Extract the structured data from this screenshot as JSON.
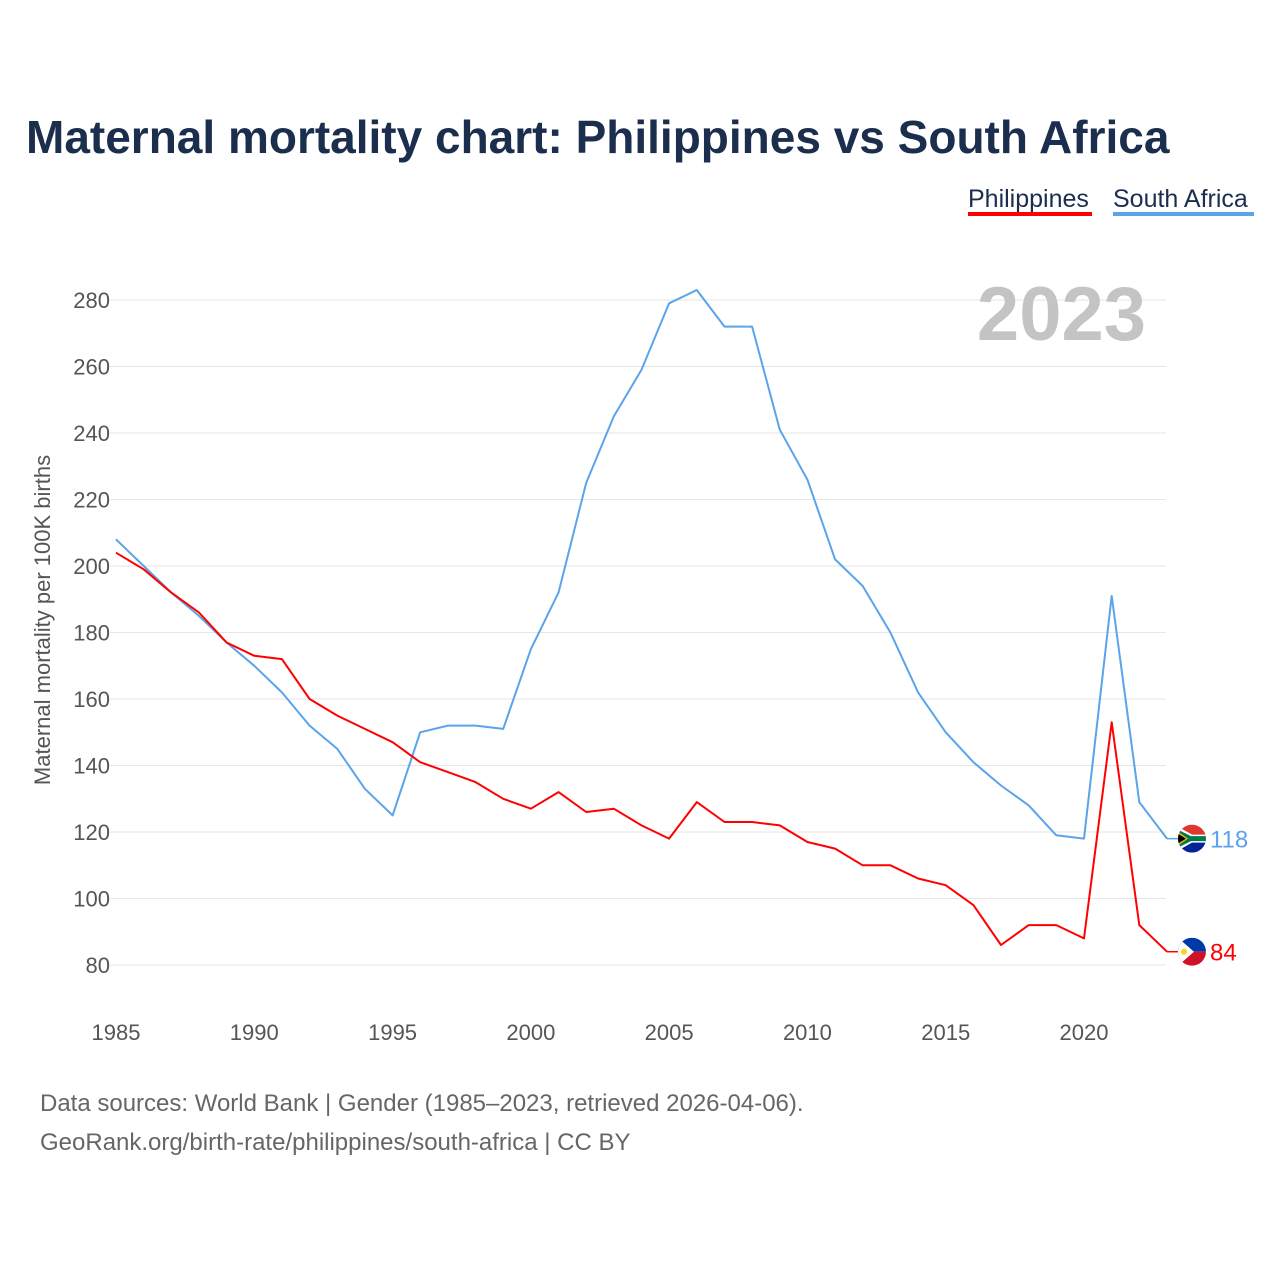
{
  "chart_data": {
    "type": "line",
    "title": "Maternal mortality chart: Philippines vs South Africa",
    "xlabel": "",
    "ylabel": "Maternal mortality per 100K births",
    "xlim": [
      1985,
      2023
    ],
    "ylim": [
      70,
      290
    ],
    "x_ticks": [
      1985,
      1990,
      1995,
      2000,
      2005,
      2010,
      2015,
      2020
    ],
    "y_ticks": [
      80,
      100,
      120,
      140,
      160,
      180,
      200,
      220,
      240,
      260,
      280
    ],
    "grid": true,
    "legend_position": "top-right",
    "year_label": "2023",
    "x": [
      1985,
      1986,
      1987,
      1988,
      1989,
      1990,
      1991,
      1992,
      1993,
      1994,
      1995,
      1996,
      1997,
      1998,
      1999,
      2000,
      2001,
      2002,
      2003,
      2004,
      2005,
      2006,
      2007,
      2008,
      2009,
      2010,
      2011,
      2012,
      2013,
      2014,
      2015,
      2016,
      2017,
      2018,
      2019,
      2020,
      2021,
      2022,
      2023
    ],
    "series": [
      {
        "name": "Philippines",
        "color": "#ff0000",
        "end_label": "84",
        "flag": "philippines-flag",
        "values": [
          204,
          199,
          192,
          186,
          177,
          173,
          172,
          160,
          155,
          151,
          147,
          141,
          138,
          135,
          130,
          127,
          132,
          126,
          127,
          122,
          118,
          129,
          123,
          123,
          122,
          117,
          115,
          110,
          110,
          106,
          104,
          98,
          86,
          92,
          92,
          88,
          153,
          92,
          84
        ]
      },
      {
        "name": "South Africa",
        "color": "#5ba3ea",
        "end_label": "118",
        "flag": "south-africa-flag",
        "values": [
          208,
          200,
          192,
          185,
          177,
          170,
          162,
          152,
          145,
          133,
          125,
          150,
          152,
          152,
          151,
          175,
          192,
          225,
          245,
          259,
          279,
          283,
          272,
          272,
          241,
          226,
          202,
          194,
          180,
          162,
          150,
          141,
          134,
          128,
          119,
          118,
          191,
          129,
          118
        ]
      }
    ]
  },
  "footer": {
    "source": "Data sources: World Bank | Gender (1985–2023, retrieved 2026-04-06).",
    "credit": "GeoRank.org/birth-rate/philippines/south-africa | CC BY"
  }
}
